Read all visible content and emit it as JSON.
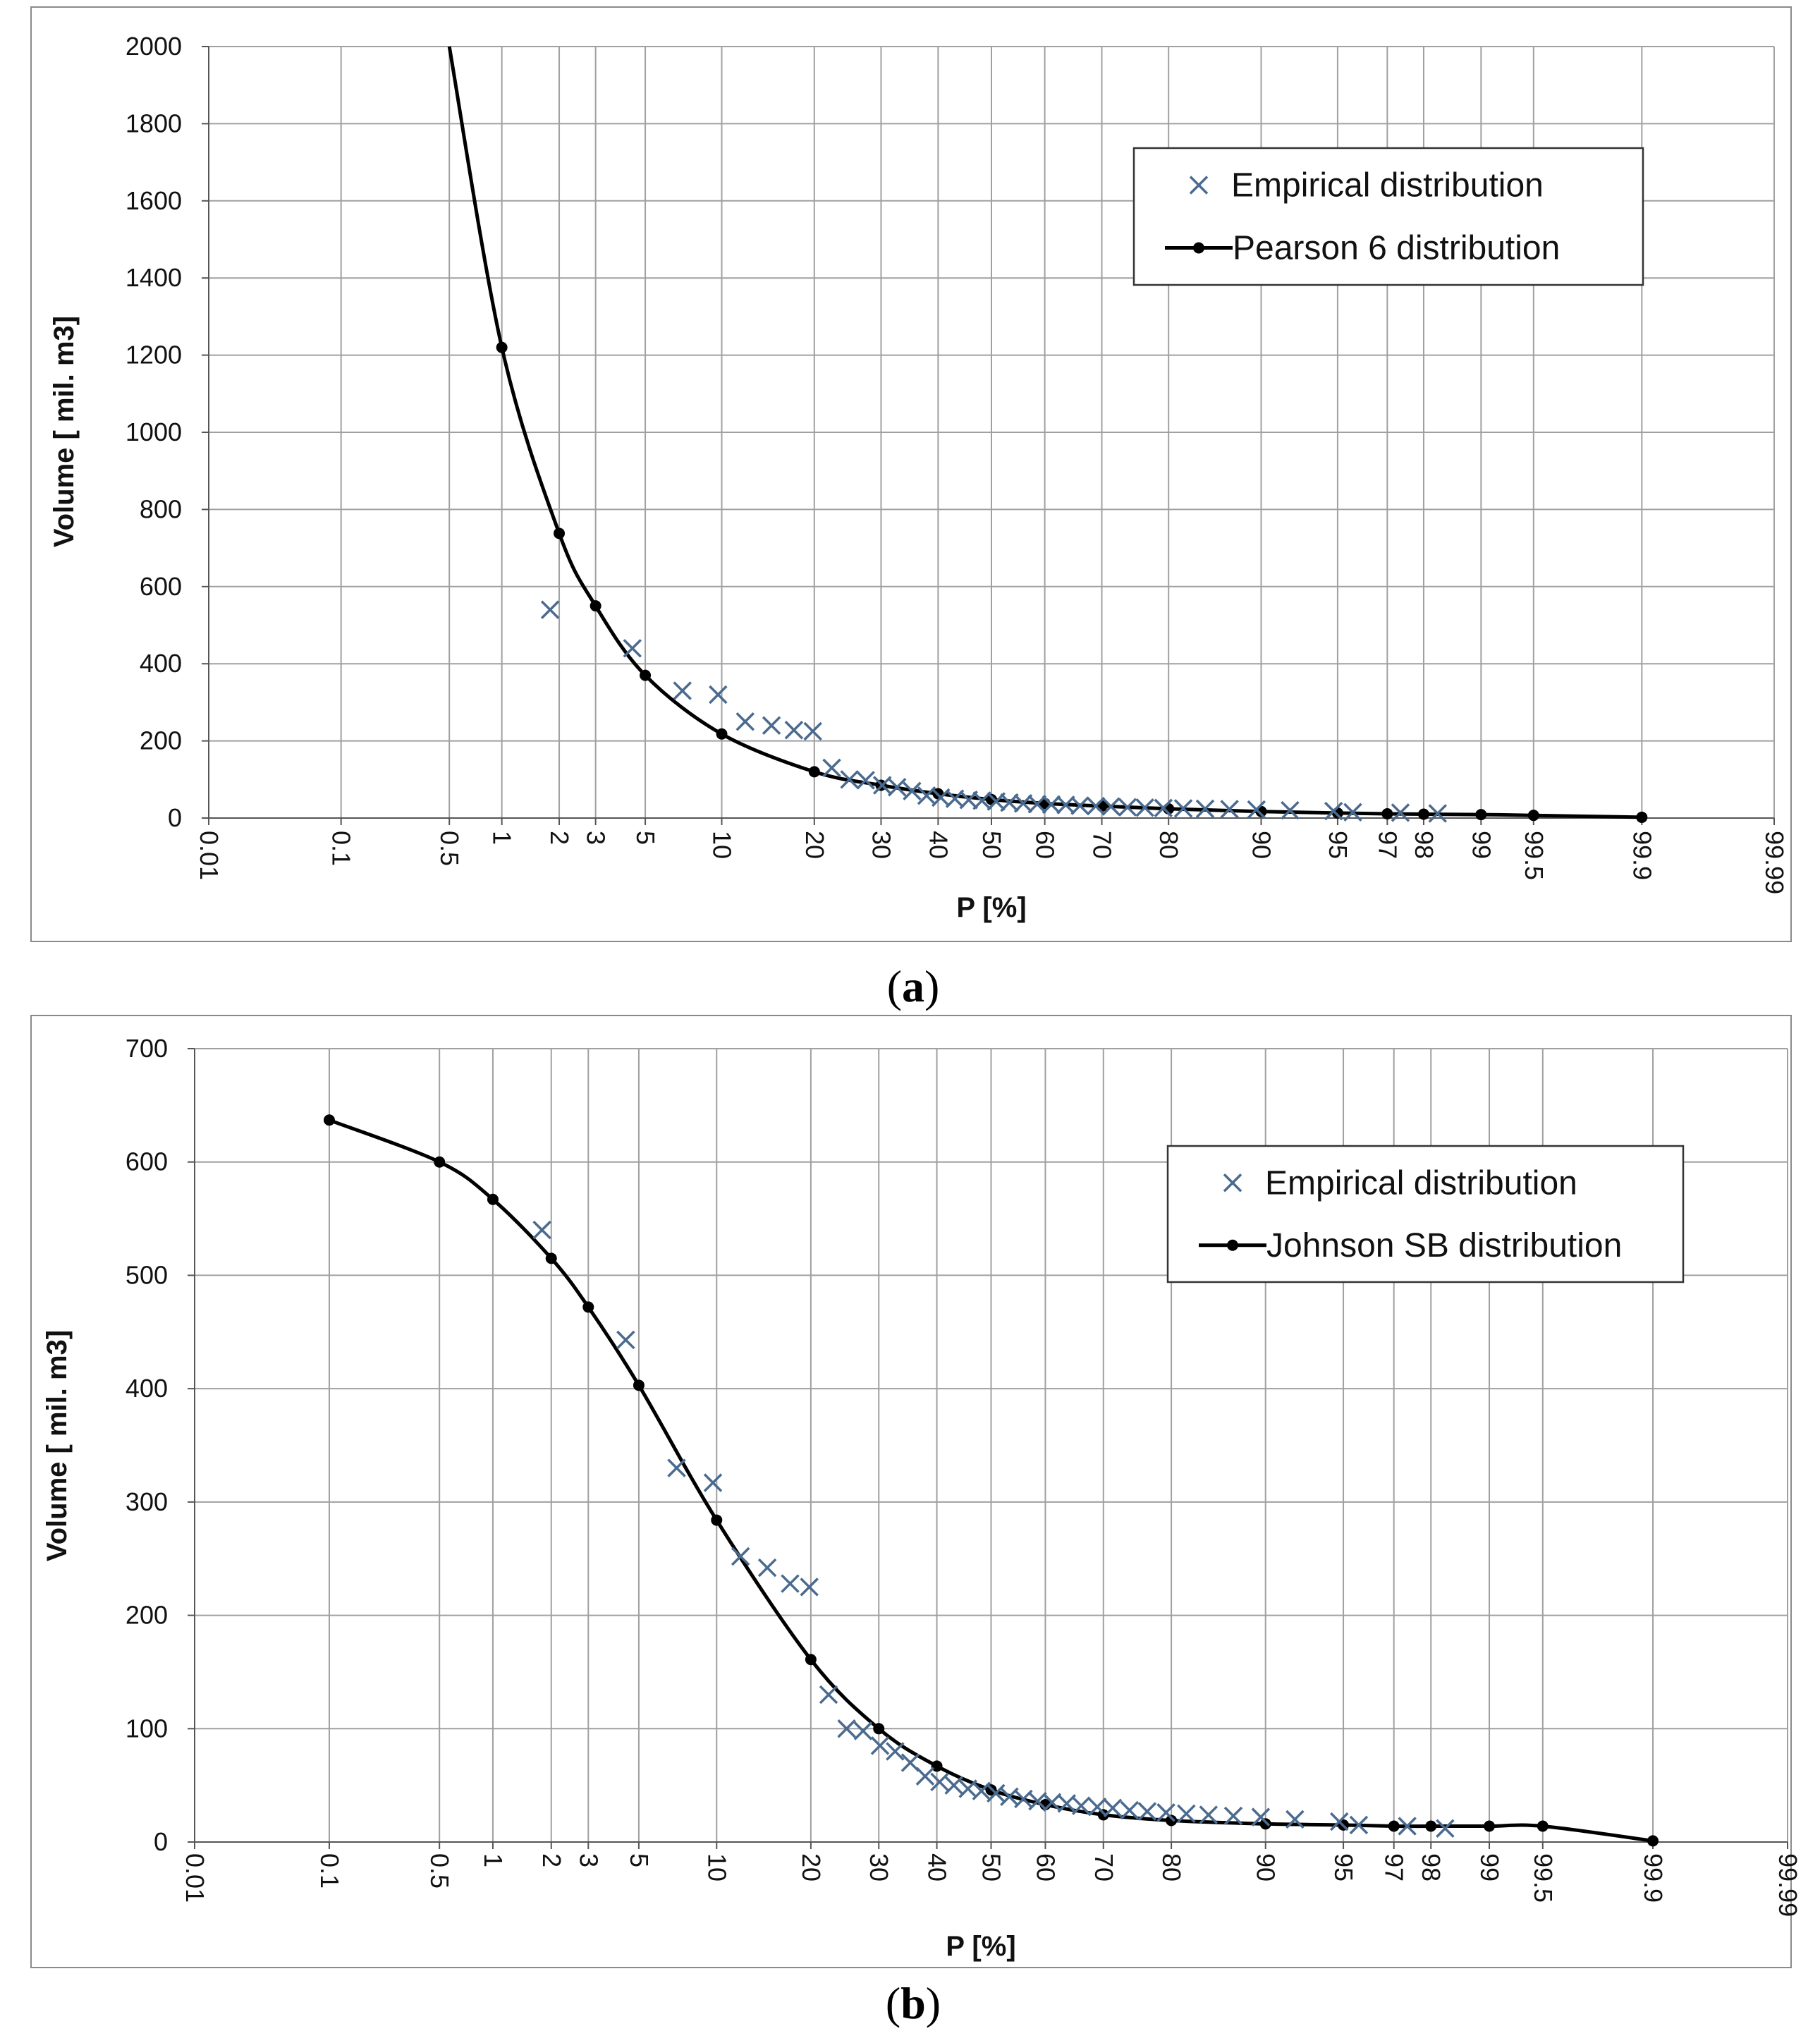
{
  "colors": {
    "empirical_marker": "#4a6b8f",
    "fitted_curve": "#000000",
    "grid": "#a0a0a0",
    "frame": "#8a8a8a"
  },
  "chart_data": [
    {
      "panel_label": "(a)",
      "type": "scatter+line",
      "x_scale": "normal-probability",
      "xlabel": "P [%]",
      "ylabel": "Volume [ mil. m3]",
      "ylim": [
        0,
        2000
      ],
      "y_ticks": [
        "0",
        "200",
        "400",
        "600",
        "800",
        "1000",
        "1200",
        "1400",
        "1600",
        "1800",
        "2000"
      ],
      "x_ticks": [
        "0.01",
        "0.1",
        "0.5",
        "1",
        "2",
        "3",
        "5",
        "10",
        "20",
        "30",
        "40",
        "50",
        "60",
        "70",
        "80",
        "90",
        "95",
        "97",
        "98",
        "99",
        "99.5",
        "99.9",
        "99.99"
      ],
      "legend_position": "top-right",
      "series": [
        {
          "name": "Empirical distribution",
          "kind": "scatter",
          "marker": "x",
          "x": [
            1.8,
            4.4,
            7.1,
            9.7,
            12.1,
            14.8,
            17.4,
            19.8,
            22.4,
            25,
            27.5,
            30.2,
            32.7,
            35.3,
            37.9,
            40.5,
            43.1,
            45.7,
            48.2,
            50.9,
            53.4,
            56,
            58.6,
            61.2,
            63.8,
            66.3,
            69,
            71.5,
            74.1,
            76.7,
            79.3,
            81.9,
            84.5,
            87.1,
            89.6,
            92.2,
            94.8,
            95.7,
            97.4,
            98.3
          ],
          "y": [
            540,
            440,
            330,
            320,
            250,
            240,
            228,
            225,
            130,
            100,
            98,
            85,
            80,
            70,
            58,
            53,
            50,
            47,
            45,
            43,
            40,
            38,
            36,
            35,
            34,
            32,
            31,
            30,
            28,
            27,
            26,
            25,
            24,
            23,
            22,
            20,
            18,
            15,
            14,
            12
          ]
        },
        {
          "name": "Pearson 6 distribution",
          "kind": "line",
          "marker": "dot",
          "x": [
            0.5,
            1,
            2,
            3,
            5,
            10,
            20,
            30,
            40,
            50,
            60,
            70,
            80,
            90,
            95,
            97,
            98,
            99,
            99.5,
            99.9
          ],
          "y": [
            2000,
            1220,
            738,
            550,
            370,
            218,
            120,
            85,
            63,
            48,
            38,
            31,
            24,
            17,
            13,
            11,
            10,
            9,
            7,
            2
          ],
          "marker_x": [
            1,
            2,
            3,
            5,
            10,
            20,
            30,
            40,
            50,
            60,
            70,
            80,
            90,
            95,
            97,
            98,
            99,
            99.5,
            99.9
          ],
          "marker_y": [
            1220,
            738,
            550,
            370,
            218,
            120,
            85,
            63,
            48,
            38,
            31,
            24,
            17,
            13,
            11,
            10,
            9,
            7,
            2
          ]
        }
      ]
    },
    {
      "panel_label": "(b)",
      "type": "scatter+line",
      "x_scale": "normal-probability",
      "xlabel": "P [%]",
      "ylabel": "Volume [ mil. m3]",
      "ylim": [
        0,
        700
      ],
      "y_ticks": [
        "0",
        "100",
        "200",
        "300",
        "400",
        "500",
        "600",
        "700"
      ],
      "x_ticks": [
        "0.01",
        "0.1",
        "0.5",
        "1",
        "2",
        "3",
        "5",
        "10",
        "20",
        "30",
        "40",
        "50",
        "60",
        "70",
        "80",
        "90",
        "95",
        "97",
        "98",
        "99",
        "99.5",
        "99.9",
        "99.99"
      ],
      "legend_position": "top-right",
      "series": [
        {
          "name": "Empirical distribution",
          "kind": "scatter",
          "marker": "x",
          "x": [
            1.8,
            4.4,
            7.1,
            9.7,
            12.1,
            14.8,
            17.4,
            19.8,
            22.4,
            25,
            27.5,
            30.2,
            32.7,
            35.3,
            37.9,
            40.5,
            43.1,
            45.7,
            48.2,
            50.9,
            53.4,
            56,
            58.6,
            61.2,
            63.8,
            66.3,
            69,
            71.5,
            74.1,
            76.7,
            79.3,
            81.9,
            84.5,
            87.1,
            89.6,
            92.2,
            94.8,
            95.7,
            97.4,
            98.3
          ],
          "y": [
            540,
            443,
            330,
            317,
            252,
            242,
            228,
            225,
            130,
            100,
            98,
            85,
            80,
            70,
            58,
            53,
            50,
            47,
            45,
            43,
            40,
            38,
            36,
            35,
            34,
            32,
            31,
            30,
            28,
            27,
            26,
            25,
            24,
            23,
            22,
            20,
            18,
            15,
            14,
            12
          ]
        },
        {
          "name": "Johnson SB distribution",
          "kind": "line",
          "marker": "dot",
          "x": [
            0.1,
            0.5,
            1,
            2,
            3,
            5,
            10,
            20,
            30,
            40,
            50,
            60,
            70,
            80,
            90,
            95,
            97,
            98,
            99,
            99.5,
            99.9
          ],
          "y": [
            637,
            600,
            567,
            515,
            472,
            403,
            284,
            161,
            100,
            67,
            46,
            33,
            24,
            19,
            16,
            15,
            14,
            14,
            14,
            14,
            1
          ],
          "marker_x": [
            0.1,
            0.5,
            1,
            2,
            3,
            5,
            10,
            20,
            30,
            40,
            50,
            60,
            70,
            80,
            90,
            95,
            97,
            98,
            99,
            99.5,
            99.9
          ],
          "marker_y": [
            637,
            600,
            567,
            515,
            472,
            403,
            284,
            161,
            100,
            67,
            46,
            33,
            24,
            19,
            16,
            15,
            14,
            14,
            14,
            14,
            1
          ]
        }
      ]
    }
  ]
}
